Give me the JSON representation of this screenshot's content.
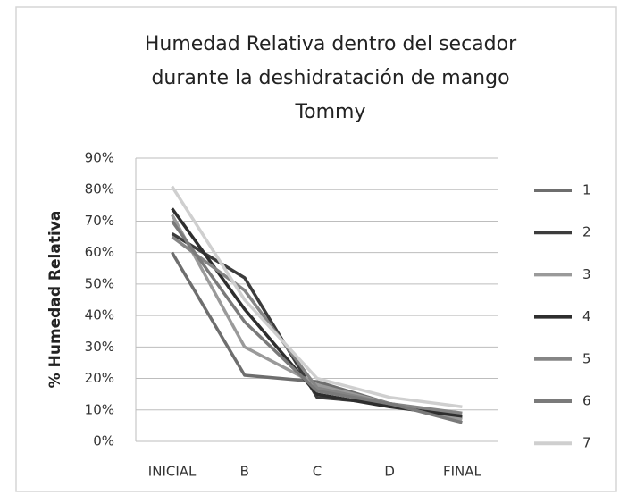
{
  "chart_data": {
    "type": "line",
    "title": [
      "Humedad Relativa dentro del secador",
      "durante la deshidratación de mango",
      "Tommy"
    ],
    "y_label": "% Humedad Relativa",
    "categories": [
      "INICIAL",
      "B",
      "C",
      "D",
      "FINAL"
    ],
    "ylim": [
      0,
      90
    ],
    "yticks": [
      {
        "value": 0,
        "label": "0%"
      },
      {
        "value": 10,
        "label": "10%"
      },
      {
        "value": 20,
        "label": "20%"
      },
      {
        "value": 30,
        "label": "30%"
      },
      {
        "value": 40,
        "label": "40%"
      },
      {
        "value": 50,
        "label": "50%"
      },
      {
        "value": 60,
        "label": "60%"
      },
      {
        "value": 70,
        "label": "70%"
      },
      {
        "value": 80,
        "label": "80%"
      },
      {
        "value": 90,
        "label": "90%"
      }
    ],
    "grid": true,
    "legend": "right",
    "series": [
      {
        "name": "1",
        "color": "#6e6e6e",
        "values": [
          60,
          21,
          19,
          12,
          8
        ]
      },
      {
        "name": "2",
        "color": "#3c3c3c",
        "values": [
          66,
          52,
          14,
          12,
          8
        ]
      },
      {
        "name": "3",
        "color": "#9a9a9a",
        "values": [
          72,
          30,
          18,
          12,
          7
        ]
      },
      {
        "name": "4",
        "color": "#2e2e2e",
        "values": [
          74,
          42,
          15,
          11,
          8
        ]
      },
      {
        "name": "5",
        "color": "#858585",
        "values": [
          65,
          48,
          17,
          12,
          9
        ]
      },
      {
        "name": "6",
        "color": "#7a7a7a",
        "values": [
          70,
          38,
          16,
          12,
          6
        ]
      },
      {
        "name": "7",
        "color": "#cfcfcf",
        "values": [
          81,
          45,
          20,
          14,
          11
        ]
      }
    ]
  }
}
